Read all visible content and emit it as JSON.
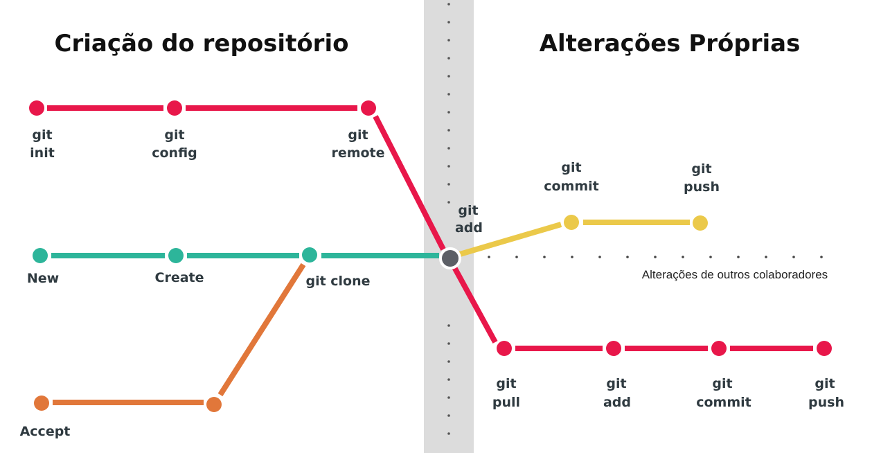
{
  "titles": {
    "left": "Criação do repositório",
    "right": "Alterações Próprias"
  },
  "labels": {
    "git_init": [
      "git",
      "init"
    ],
    "git_config": [
      "git",
      "config"
    ],
    "git_remote": [
      "git",
      "remote"
    ],
    "new": "New",
    "create": "Create",
    "git_clone": "git clone",
    "accept": "Accept",
    "git_add_center": [
      "git",
      "add"
    ],
    "git_commit_top": [
      "git",
      "commit"
    ],
    "git_push_top": [
      "git",
      "push"
    ],
    "others_note": "Alterações de outros colaboradores",
    "git_pull": [
      "git",
      "pull"
    ],
    "git_add_bottom": [
      "git",
      "add"
    ],
    "git_commit_bottom": [
      "git",
      "commit"
    ],
    "git_push_bottom": [
      "git",
      "push"
    ]
  },
  "colors": {
    "red": "#e8174a",
    "teal": "#2db59a",
    "orange": "#e1773a",
    "yellow": "#ebc94a",
    "junction": "#5c5f66",
    "band": "#dcdcdc"
  }
}
